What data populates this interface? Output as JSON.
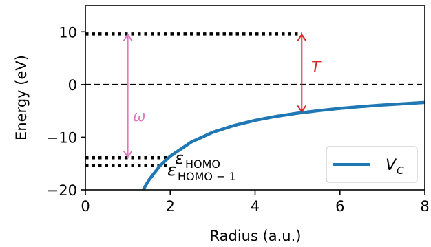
{
  "chart_data": {
    "type": "line",
    "xlabel": "Radius (a.u.)",
    "ylabel": "Energy (eV)",
    "xlim": [
      0,
      8
    ],
    "ylim": [
      -20,
      15
    ],
    "x_ticks": [
      "0",
      "2",
      "4",
      "6",
      "8"
    ],
    "y_ticks": [
      "−20",
      "−10",
      "0",
      "10"
    ],
    "x_tick_values": [
      0,
      2,
      4,
      6,
      8
    ],
    "y_tick_values": [
      -20,
      -10,
      0,
      10
    ],
    "grid": false,
    "legend_position": "bottom-right",
    "series": [
      {
        "name": "V_C",
        "color": "#1f77b4",
        "x": [
          1.36,
          1.5,
          1.75,
          2.0,
          2.5,
          3.0,
          3.5,
          4.0,
          4.5,
          5.0,
          5.5,
          6.0,
          6.5,
          7.0,
          7.5,
          8.0
        ],
        "y": [
          -20.0,
          -18.1,
          -15.5,
          -13.6,
          -10.9,
          -9.07,
          -7.77,
          -6.8,
          -6.04,
          -5.44,
          -4.95,
          -4.53,
          -4.18,
          -3.89,
          -3.63,
          -3.4
        ]
      }
    ],
    "reference_lines": [
      {
        "y": 9.6,
        "x": [
          0,
          5.1
        ],
        "style": "dotted"
      },
      {
        "y": 0,
        "x": [
          0,
          8
        ],
        "style": "dashed"
      },
      {
        "y": -13.9,
        "x": [
          0,
          2.0
        ],
        "style": "dotted"
      },
      {
        "y": -15.4,
        "x": [
          0,
          2.0
        ],
        "style": "dotted"
      }
    ],
    "arrows": [
      {
        "x": 1.0,
        "y_from": 9.6,
        "y_to": -13.9,
        "color": "#e377c2",
        "label": "ω"
      },
      {
        "x": 5.1,
        "y_from": 9.6,
        "y_to": -5.3,
        "color": "#d62728",
        "label": "T"
      }
    ],
    "annotations": [
      {
        "symbol": "ε",
        "subscript": "HOMO"
      },
      {
        "symbol": "ε",
        "subscript": "HOMO − 1"
      }
    ],
    "legend": {
      "symbol": "V",
      "subscript": "C"
    }
  }
}
